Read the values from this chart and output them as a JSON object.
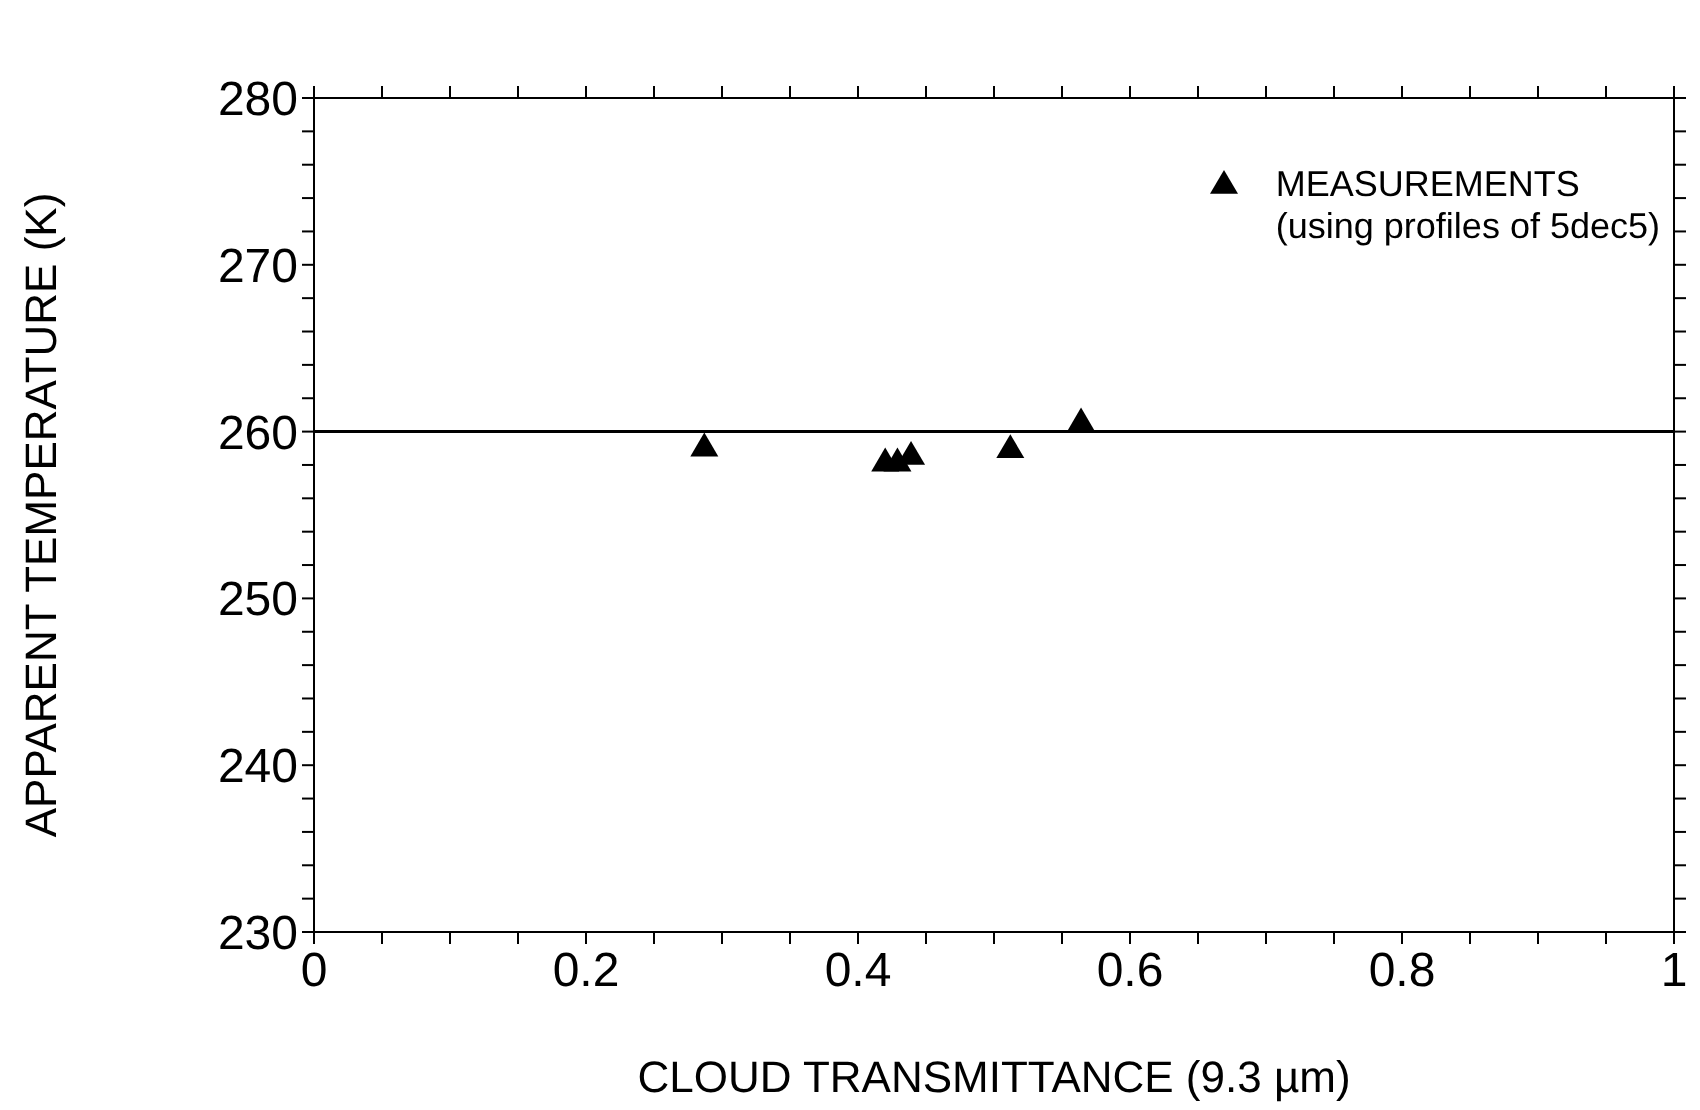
{
  "chart_data": {
    "type": "scatter",
    "xlabel": "CLOUD TRANSMITTANCE (9.3 µm)",
    "ylabel": "APPARENT TEMPERATURE (K)",
    "xlim": [
      0,
      1
    ],
    "ylim": [
      230,
      280
    ],
    "xticks": [
      0,
      {
        "value": 0.05,
        "label": null
      },
      {
        "value": 0.1,
        "label": null
      },
      {
        "value": 0.15,
        "label": null
      },
      0.2,
      {
        "value": 0.25,
        "label": null
      },
      {
        "value": 0.3,
        "label": null
      },
      {
        "value": 0.35,
        "label": null
      },
      0.4,
      {
        "value": 0.45,
        "label": null
      },
      {
        "value": 0.5,
        "label": null
      },
      {
        "value": 0.55,
        "label": null
      },
      0.6,
      {
        "value": 0.65,
        "label": null
      },
      {
        "value": 0.7,
        "label": null
      },
      {
        "value": 0.75,
        "label": null
      },
      0.8,
      {
        "value": 0.85,
        "label": null
      },
      {
        "value": 0.9,
        "label": null
      },
      {
        "value": 0.95,
        "label": null
      },
      1
    ],
    "yticks": [
      230,
      {
        "value": 232,
        "label": null
      },
      {
        "value": 234,
        "label": null
      },
      {
        "value": 236,
        "label": null
      },
      {
        "value": 238,
        "label": null
      },
      240,
      {
        "value": 242,
        "label": null
      },
      {
        "value": 244,
        "label": null
      },
      {
        "value": 246,
        "label": null
      },
      {
        "value": 248,
        "label": null
      },
      250,
      {
        "value": 252,
        "label": null
      },
      {
        "value": 254,
        "label": null
      },
      {
        "value": 256,
        "label": null
      },
      {
        "value": 258,
        "label": null
      },
      260,
      {
        "value": 262,
        "label": null
      },
      {
        "value": 264,
        "label": null
      },
      {
        "value": 266,
        "label": null
      },
      {
        "value": 268,
        "label": null
      },
      270,
      {
        "value": 272,
        "label": null
      },
      {
        "value": 274,
        "label": null
      },
      {
        "value": 276,
        "label": null
      },
      {
        "value": 278,
        "label": null
      },
      280
    ],
    "series": [
      {
        "name": "MEASUREMENTS\n(using profiles of 5dec5)",
        "color": "#000000",
        "x": [
          0.287,
          0.42,
          0.429,
          0.439,
          0.512,
          0.564
        ],
        "values": [
          259.1,
          258.2,
          258.2,
          258.6,
          259.0,
          260.6
        ]
      }
    ],
    "ref_lines": [
      {
        "axis": "y",
        "value": 260,
        "color": "#000000",
        "line_style": "solid"
      }
    ],
    "marker": "triangle",
    "legend": "top right"
  }
}
